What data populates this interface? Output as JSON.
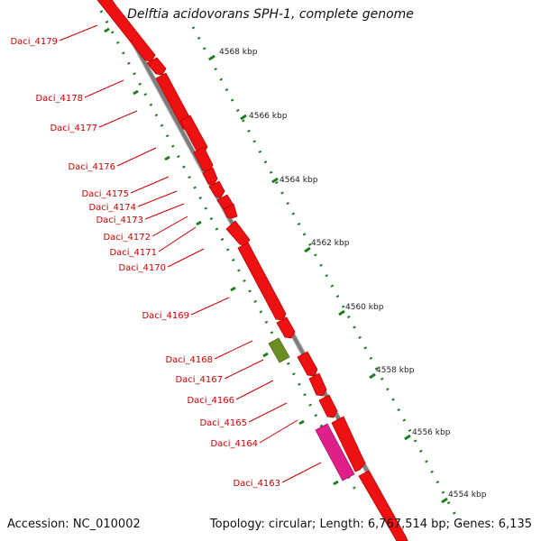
{
  "map": {
    "title": "Delftia acidovorans SPH-1, complete genome",
    "accession_text": "Accession: NC_010002",
    "summary_text": "Topology: circular; Length: 6,767,514 bp; Genes: 6,135",
    "scale_ticks": [
      "4568 kbp",
      "4566 kbp",
      "4564 kbp",
      "4562 kbp",
      "4560 kbp",
      "4558 kbp",
      "4556 kbp",
      "4554 kbp"
    ],
    "genes": [
      "Daci_4179",
      "Daci_4178",
      "Daci_4177",
      "Daci_4176",
      "Daci_4175",
      "Daci_4174",
      "Daci_4173",
      "Daci_4172",
      "Daci_4171",
      "Daci_4170",
      "Daci_4169",
      "Daci_4168",
      "Daci_4167",
      "Daci_4166",
      "Daci_4165",
      "Daci_4164",
      "Daci_4163"
    ],
    "colors": {
      "backbone": "#8a8a8a",
      "gene": "#ee1111",
      "gene_label": "#cc0000",
      "tick": "#1e7d1e",
      "feature_olive": "#6b8e23",
      "feature_magenta": "#e0208a"
    }
  }
}
